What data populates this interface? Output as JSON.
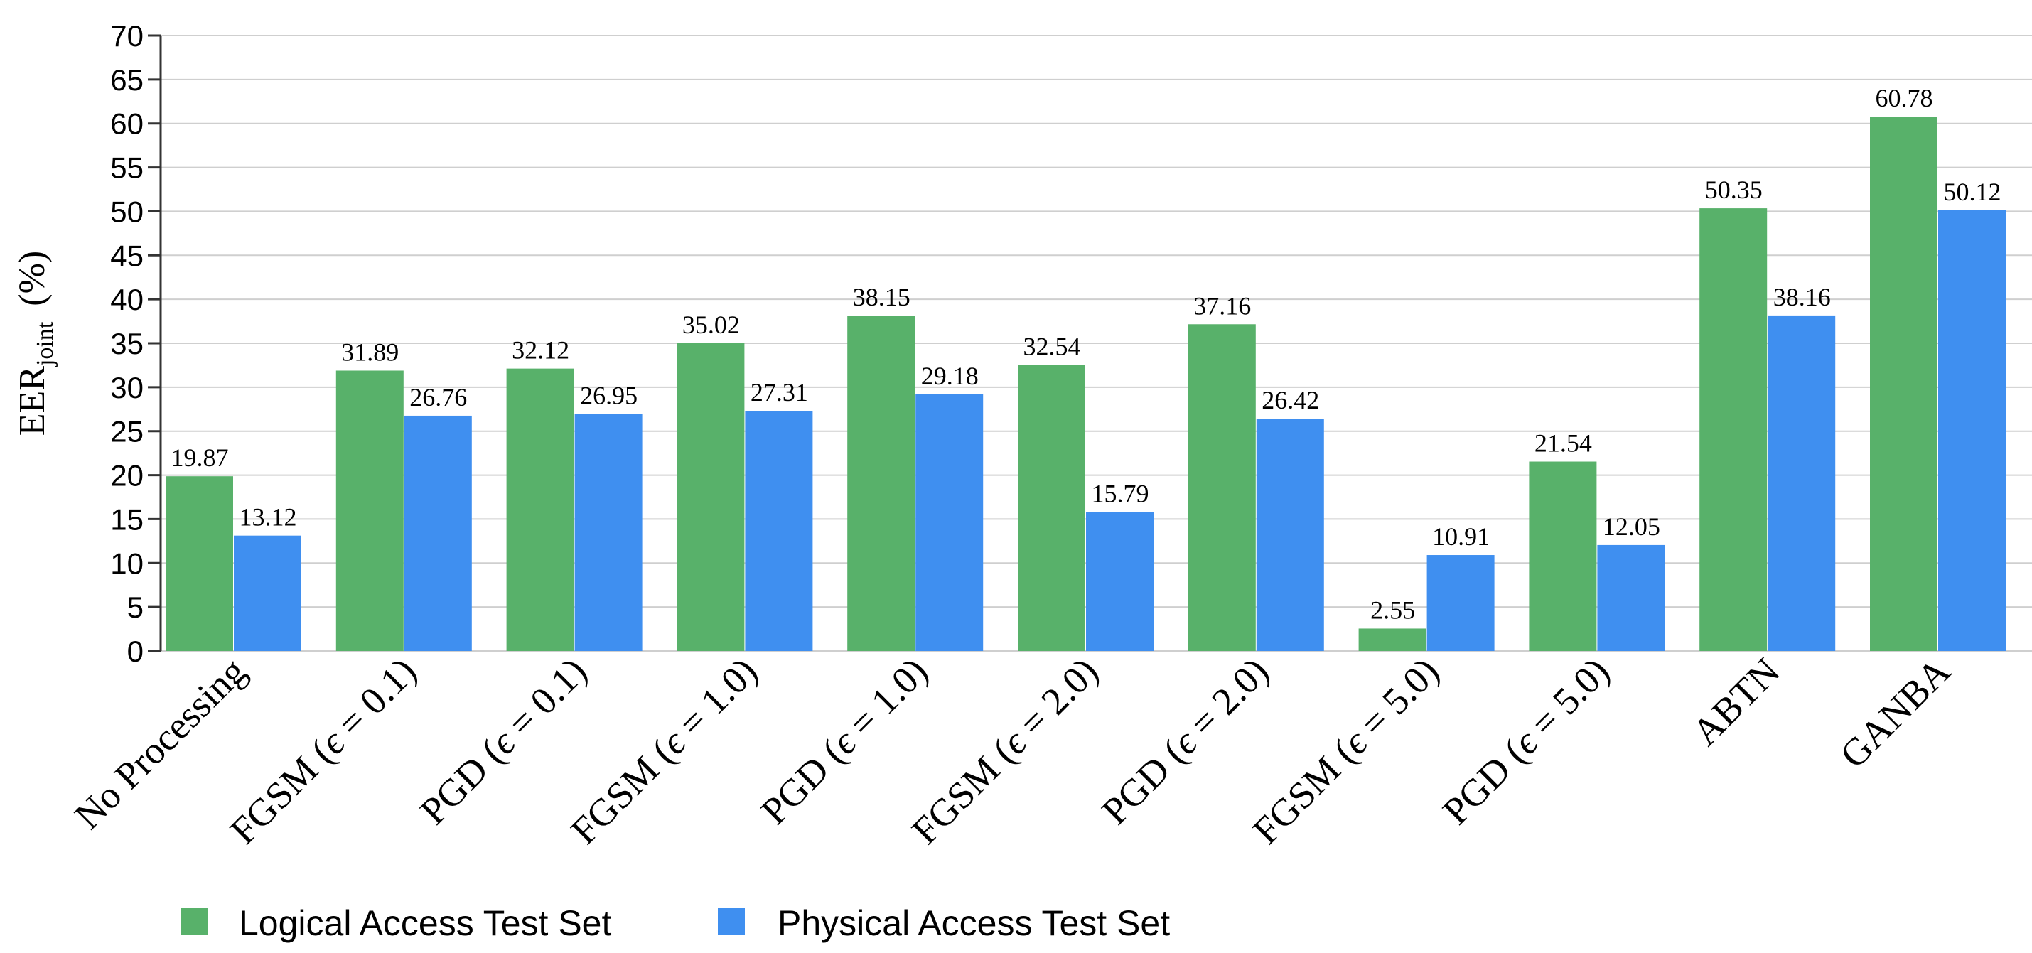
{
  "chart_data": {
    "type": "bar",
    "title": "",
    "xlabel": "",
    "ylabel_main": "EER",
    "ylabel_sub": "joint",
    "ylabel_unit": "(%)",
    "ylim": [
      0,
      70
    ],
    "yticks": [
      0,
      5,
      10,
      15,
      20,
      25,
      30,
      35,
      40,
      45,
      50,
      55,
      60,
      65,
      70
    ],
    "grid": true,
    "legend_position": "bottom-left",
    "categories": [
      {
        "prefix": "No Processing",
        "eps": "",
        "suffix": ""
      },
      {
        "prefix": "FGSM (",
        "eps": "ϵ",
        "suffix": " = 0.1)"
      },
      {
        "prefix": "PGD (",
        "eps": "ϵ",
        "suffix": " = 0.1)"
      },
      {
        "prefix": "FGSM (",
        "eps": "ϵ",
        "suffix": " = 1.0)"
      },
      {
        "prefix": "PGD (",
        "eps": "ϵ",
        "suffix": " = 1.0)"
      },
      {
        "prefix": "FGSM (",
        "eps": "ϵ",
        "suffix": " = 2.0)"
      },
      {
        "prefix": "PGD (",
        "eps": "ϵ",
        "suffix": " = 2.0)"
      },
      {
        "prefix": "FGSM (",
        "eps": "ϵ",
        "suffix": " = 5.0)"
      },
      {
        "prefix": "PGD (",
        "eps": "ϵ",
        "suffix": " = 5.0)"
      },
      {
        "prefix": "ABTN",
        "eps": "",
        "suffix": ""
      },
      {
        "prefix": "GANBA",
        "eps": "",
        "suffix": ""
      }
    ],
    "series": [
      {
        "name": "Logical Access Test Set",
        "color": "#58b16a",
        "values": [
          19.87,
          31.89,
          32.12,
          35.02,
          38.15,
          32.54,
          37.16,
          2.55,
          21.54,
          50.35,
          60.78
        ],
        "labels": [
          "19.87",
          "31.89",
          "32.12",
          "35.02",
          "38.15",
          "32.54",
          "37.16",
          "2.55",
          "21.54",
          "50.35",
          "60.78"
        ]
      },
      {
        "name": "Physical Access Test Set",
        "color": "#3f8ff0",
        "values": [
          13.12,
          26.76,
          26.95,
          27.31,
          29.18,
          15.79,
          26.42,
          10.91,
          12.05,
          38.16,
          50.12
        ],
        "labels": [
          "13.12",
          "26.76",
          "26.95",
          "27.31",
          "29.18",
          "15.79",
          "26.42",
          "10.91",
          "12.05",
          "38.16",
          "50.12"
        ]
      }
    ]
  }
}
